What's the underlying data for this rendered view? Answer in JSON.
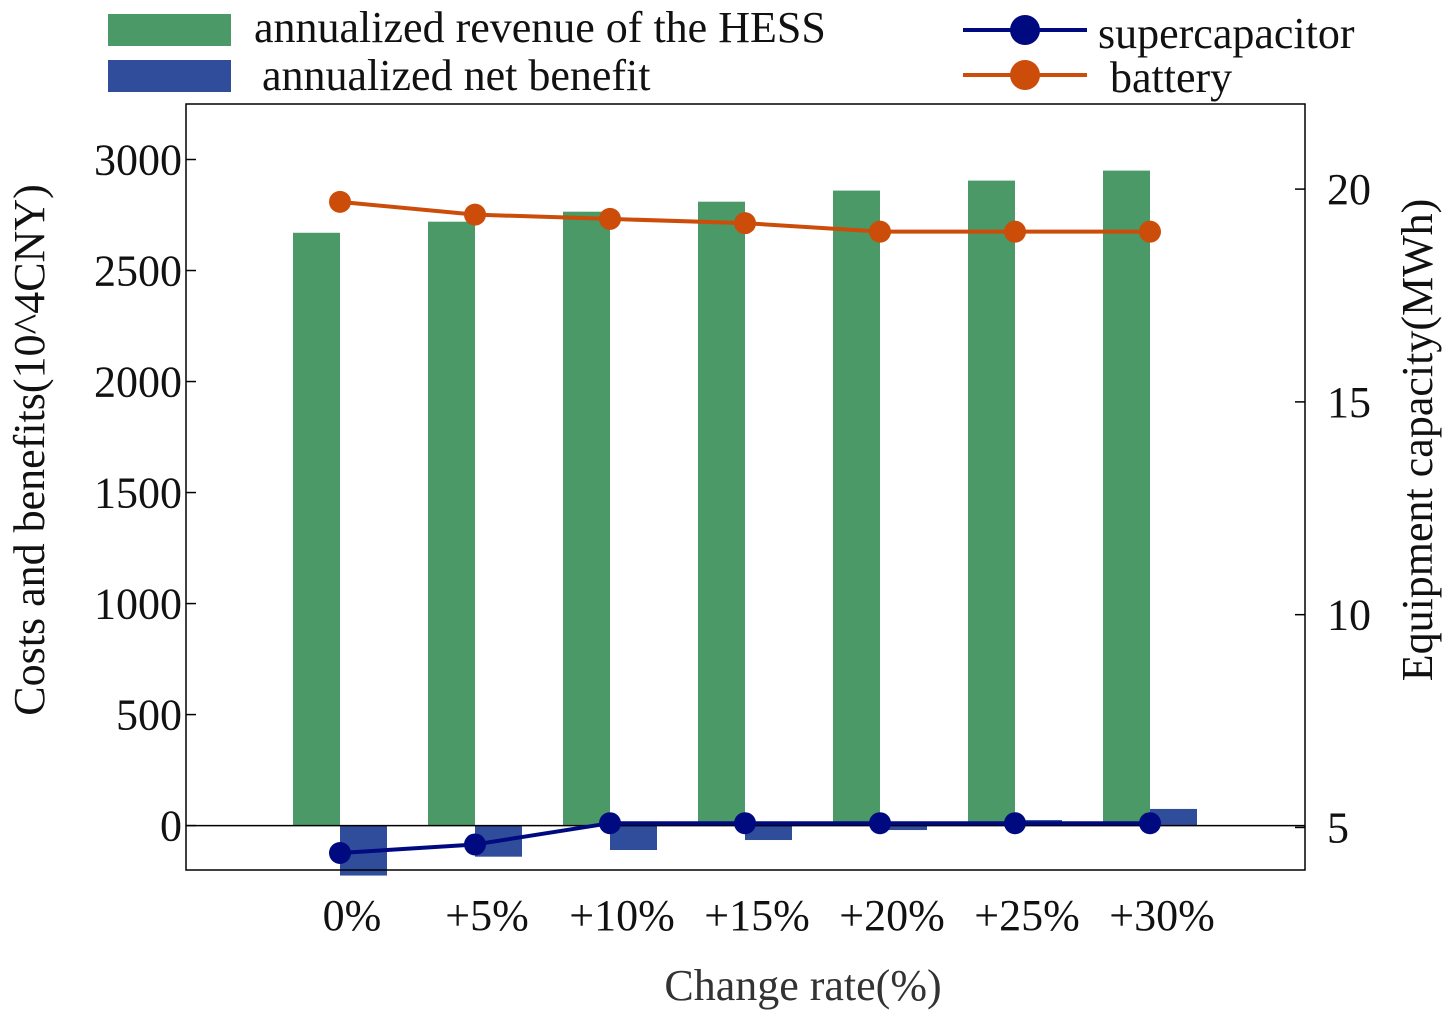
{
  "chart_data": {
    "type": "bar",
    "xlabel": "Change rate(%)",
    "ylabel_left": "Costs and benefits(10^4CNY)",
    "ylabel_right": "Equipment capacity(MWh)",
    "categories": [
      "0%",
      "+5%",
      "+10%",
      "+15%",
      "+20%",
      "+25%",
      "+30%"
    ],
    "y_left": {
      "range": [
        -200,
        3250
      ],
      "ticks": [
        0,
        500,
        1000,
        1500,
        2000,
        2500,
        3000
      ]
    },
    "y_right": {
      "range": [
        4,
        22
      ],
      "ticks": [
        5,
        10,
        15,
        20
      ]
    },
    "series": [
      {
        "name": "annualized revenue of the HESS",
        "kind": "bar",
        "axis": "left",
        "color": "#4a9966",
        "values": [
          2670,
          2720,
          2765,
          2810,
          2860,
          2905,
          2950
        ]
      },
      {
        "name": "annualized net benefit",
        "kind": "bar",
        "axis": "left",
        "color": "#304d9c",
        "values": [
          -225,
          -140,
          -110,
          -65,
          -20,
          25,
          75
        ]
      },
      {
        "name": "supercapacitor",
        "kind": "line",
        "axis": "right",
        "color": "#000a80",
        "values": [
          4.4,
          4.6,
          5.1,
          5.1,
          5.1,
          5.1,
          5.1
        ]
      },
      {
        "name": "battery",
        "kind": "line",
        "axis": "right",
        "color": "#cc4c0a",
        "values": [
          19.7,
          19.4,
          19.3,
          19.2,
          19.0,
          19.0,
          19.0
        ]
      }
    ],
    "legend": "top"
  }
}
